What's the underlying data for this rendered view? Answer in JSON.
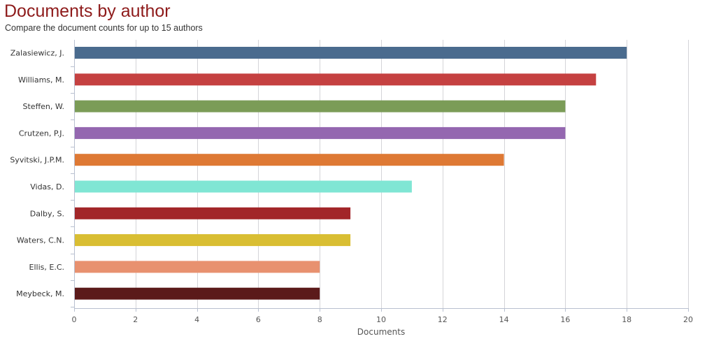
{
  "header": {
    "title": "Documents by author",
    "subtitle": "Compare the document counts for up to 15 authors"
  },
  "chart_data": {
    "type": "bar",
    "orientation": "horizontal",
    "categories": [
      "Zalasiewicz, J.",
      "Williams, M.",
      "Steffen, W.",
      "Crutzen, P.J.",
      "Syvitski, J.P.M.",
      "Vidas, D.",
      "Dalby, S.",
      "Waters, C.N.",
      "Ellis, E.C.",
      "Meybeck, M."
    ],
    "values": [
      18,
      17,
      16,
      16,
      14,
      11,
      9,
      9,
      8,
      8
    ],
    "colors": [
      "#4a6b8e",
      "#c54141",
      "#7b9c57",
      "#9467b0",
      "#de7934",
      "#80e6d4",
      "#a22629",
      "#d9be33",
      "#e8916f",
      "#5b1a1a"
    ],
    "xlabel": "Documents",
    "ylabel": "",
    "xlim": [
      0,
      20
    ],
    "xticks": [
      0,
      2,
      4,
      6,
      8,
      10,
      12,
      14,
      16,
      18,
      20
    ],
    "grid": "vertical",
    "legend": "none"
  }
}
